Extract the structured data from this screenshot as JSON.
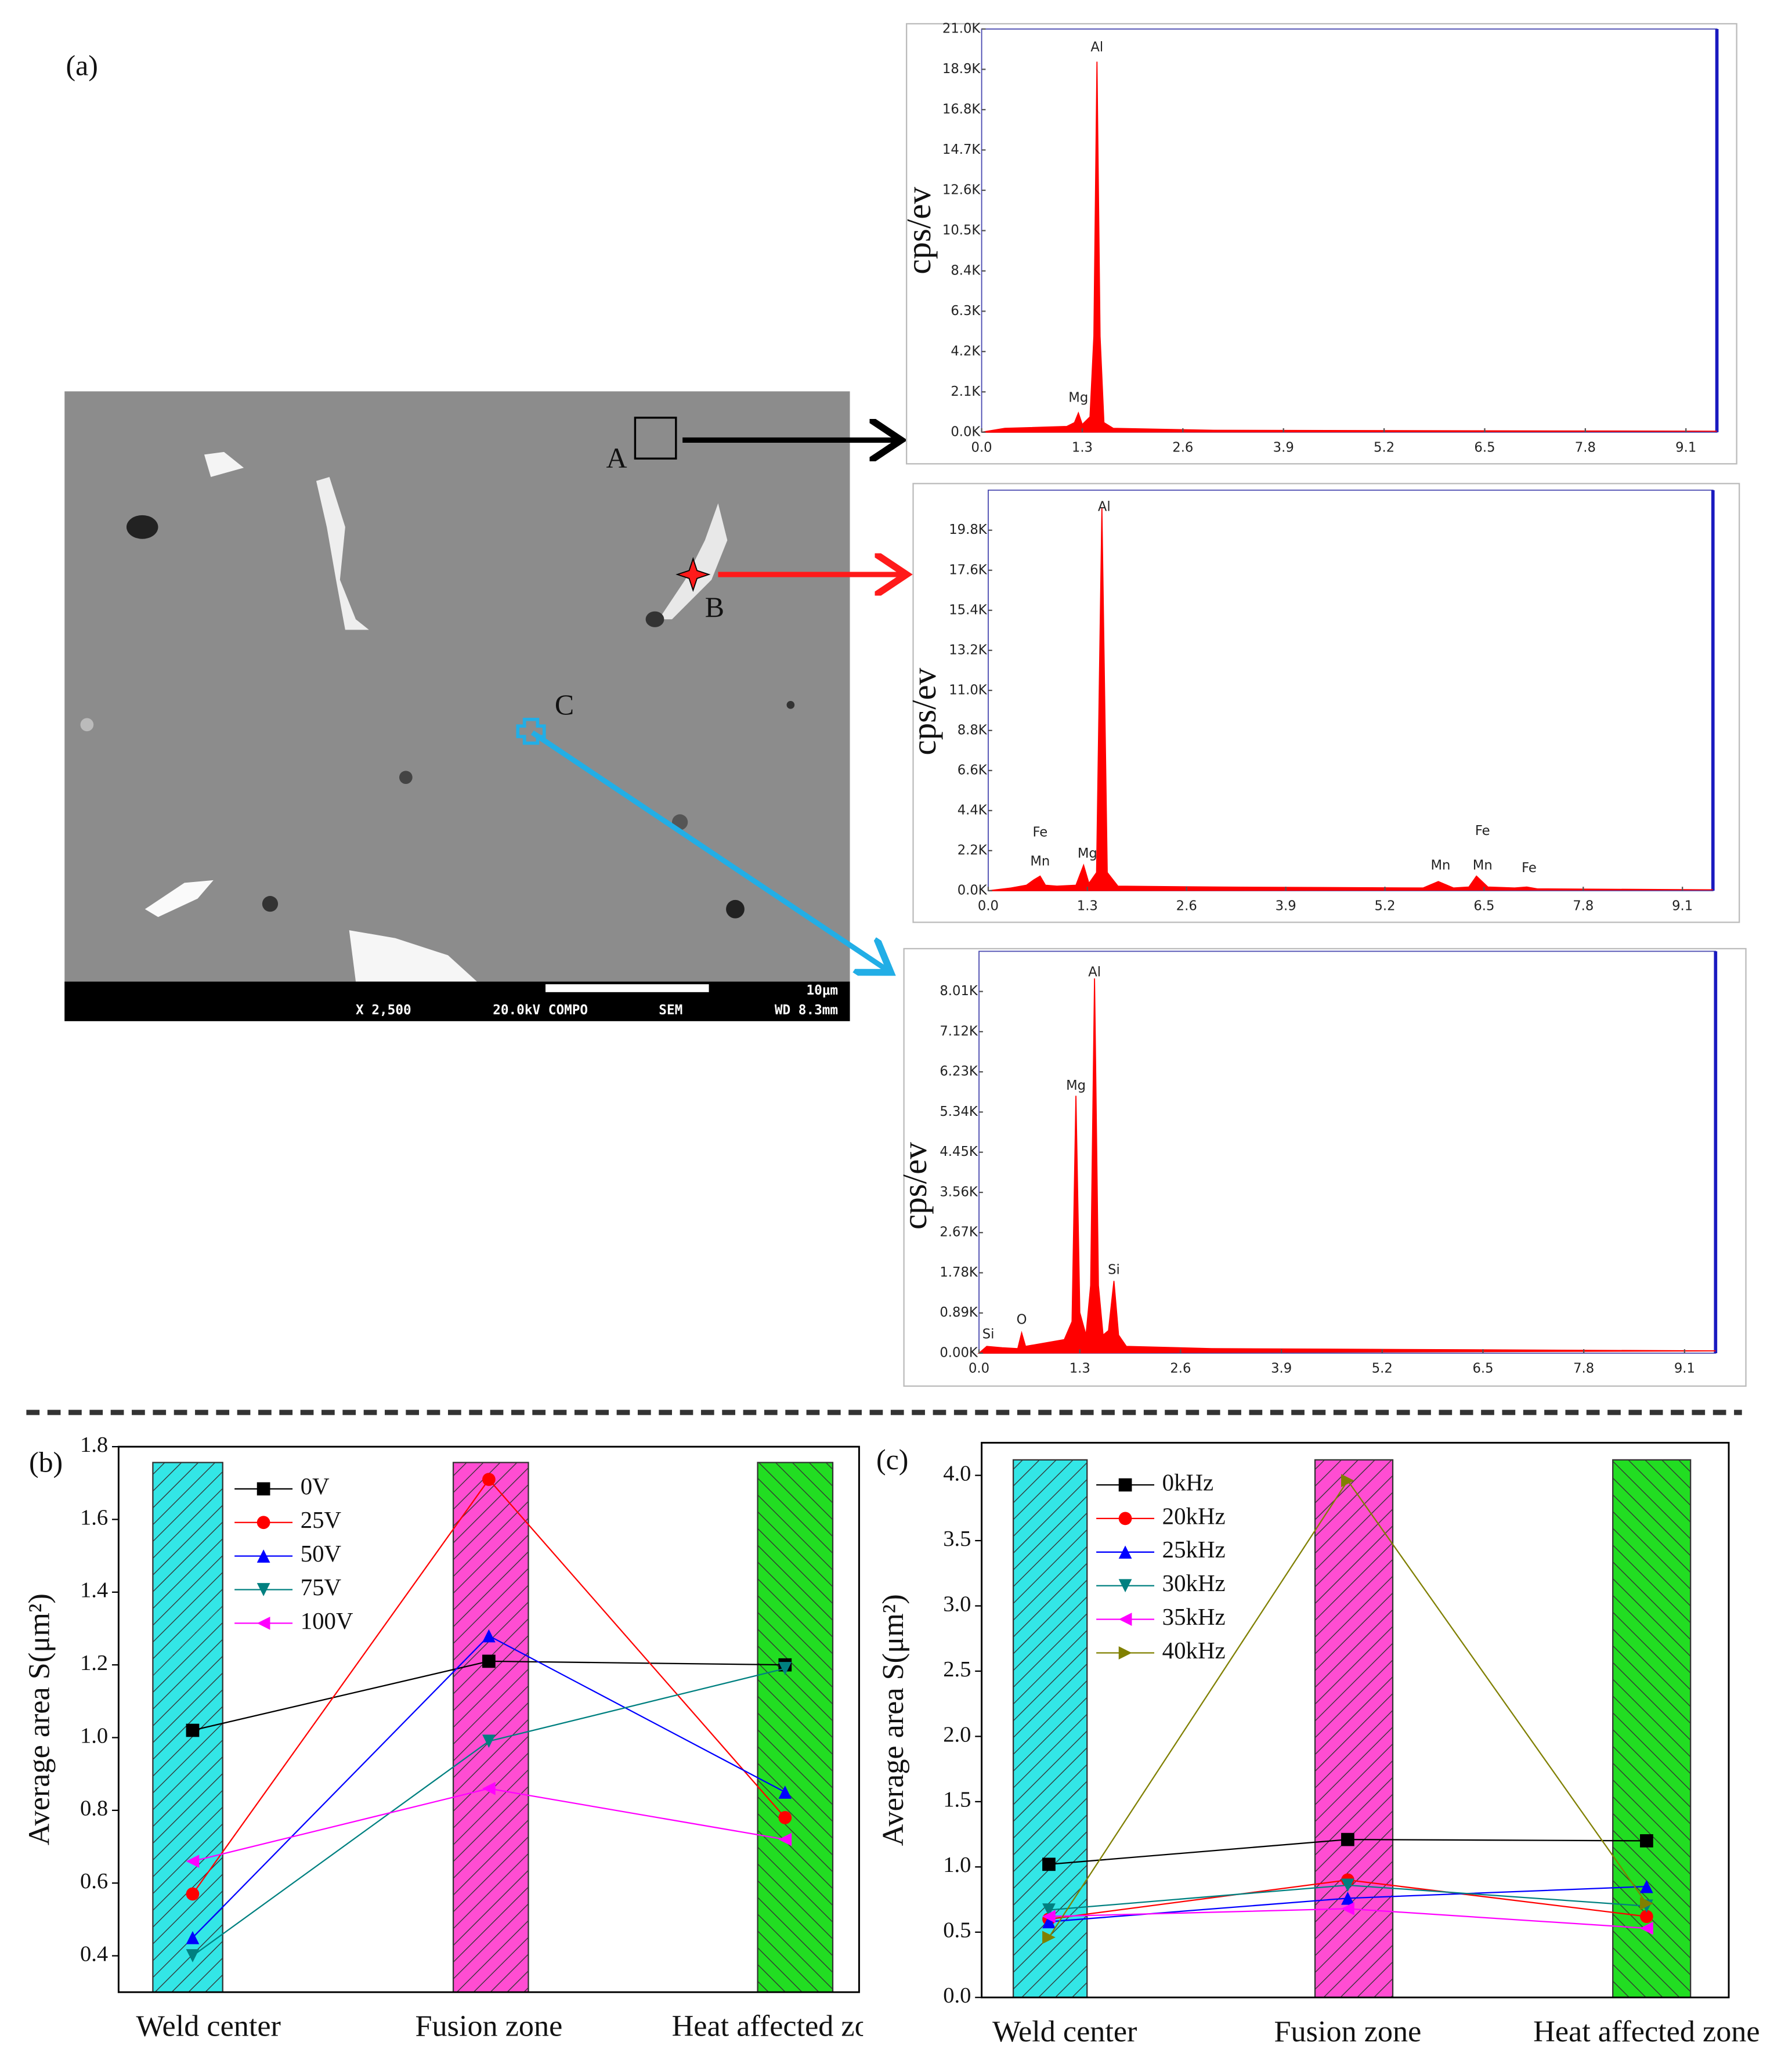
{
  "sem_image": {
    "panel_label": "(a)",
    "points": [
      "A",
      "B",
      "C"
    ],
    "scale": "10μm",
    "footer": [
      "X 2,500",
      "20.0kV COMPO",
      "SEM",
      "WD 8.3mm"
    ]
  },
  "chart_data": [
    {
      "type": "area",
      "y_label": "cps/ev",
      "color": "#ff0000",
      "x": [
        0,
        0.3,
        1.1,
        1.2,
        1.25,
        1.3,
        1.4,
        1.45,
        1.49,
        1.53,
        1.58,
        1.7,
        3,
        9.5
      ],
      "values": [
        0,
        200,
        300,
        500,
        1000,
        400,
        800,
        5000,
        19300,
        5000,
        500,
        200,
        100,
        50
      ],
      "xlim": [
        0,
        9.5
      ],
      "ylim": [
        0,
        21000
      ],
      "xticks": [
        {
          "value": 0,
          "label": "0.0"
        },
        1.3,
        2.6,
        3.9,
        5.2,
        6.5,
        7.8,
        9.1
      ],
      "yticks": [
        {
          "value": 0,
          "label": "0.0K"
        },
        {
          "value": 2100,
          "label": "2.1K"
        },
        {
          "value": 4200,
          "label": "4.2K"
        },
        {
          "value": 6300,
          "label": "6.3K"
        },
        {
          "value": 8400,
          "label": "8.4K"
        },
        {
          "value": 10500,
          "label": "10.5K"
        },
        {
          "value": 12600,
          "label": "12.6K"
        },
        {
          "value": 14700,
          "label": "14.7K"
        },
        {
          "value": 16800,
          "label": "16.8K"
        },
        {
          "value": 18900,
          "label": "18.9K"
        },
        {
          "value": 21000,
          "label": "21.0K"
        }
      ],
      "annotations": [
        {
          "text": "Al",
          "x": 1.49,
          "y": 20040
        },
        {
          "text": "Mg",
          "x": 1.25,
          "y": 1780
        }
      ]
    },
    {
      "type": "area",
      "y_label": "cps/ev",
      "color": "#ff0000",
      "x": [
        0,
        0.3,
        0.5,
        0.6,
        0.68,
        0.75,
        0.9,
        1.15,
        1.25,
        1.32,
        1.42,
        1.49,
        1.56,
        1.7,
        3,
        5.7,
        5.9,
        6.1,
        6.3,
        6.4,
        6.55,
        6.9,
        7.06,
        7.2,
        9.5
      ],
      "values": [
        0,
        150,
        300,
        600,
        800,
        300,
        250,
        300,
        1400,
        400,
        1000,
        21000,
        1000,
        250,
        200,
        150,
        500,
        150,
        200,
        800,
        200,
        150,
        200,
        100,
        50
      ],
      "xlim": [
        0,
        9.5
      ],
      "ylim": [
        0,
        22000
      ],
      "xticks": [
        {
          "value": 0,
          "label": "0.0"
        },
        1.3,
        2.6,
        3.9,
        5.2,
        6.5,
        7.8,
        9.1
      ],
      "yticks": [
        {
          "value": 0,
          "label": "0.0K"
        },
        {
          "value": 2200,
          "label": "2.2K"
        },
        {
          "value": 4400,
          "label": "4.4K"
        },
        {
          "value": 6600,
          "label": "6.6K"
        },
        {
          "value": 8800,
          "label": "8.8K"
        },
        {
          "value": 11000,
          "label": "11.0K"
        },
        {
          "value": 13200,
          "label": "13.2K"
        },
        {
          "value": 15400,
          "label": "15.4K"
        },
        {
          "value": 17600,
          "label": "17.6K"
        },
        {
          "value": 19800,
          "label": "19.8K"
        }
      ],
      "annotations": [
        {
          "text": "Al",
          "x": 1.52,
          "y": 21060
        },
        {
          "text": "Fe",
          "x": 0.68,
          "y": 3180
        },
        {
          "text": "Mn",
          "x": 0.68,
          "y": 1590
        },
        {
          "text": "Mg",
          "x": 1.3,
          "y": 2030
        },
        {
          "text": "Mn",
          "x": 5.93,
          "y": 1370
        },
        {
          "text": "Fe",
          "x": 6.48,
          "y": 3260
        },
        {
          "text": "Mn",
          "x": 6.48,
          "y": 1370
        },
        {
          "text": "Fe",
          "x": 7.09,
          "y": 1230
        }
      ]
    },
    {
      "type": "area",
      "y_label": "cps/ev",
      "color": "#ff0000",
      "x": [
        0,
        0.1,
        0.3,
        0.5,
        0.55,
        0.6,
        1.1,
        1.2,
        1.25,
        1.3,
        1.38,
        1.44,
        1.49,
        1.54,
        1.6,
        1.67,
        1.74,
        1.8,
        1.9,
        3,
        9.5
      ],
      "values": [
        0,
        150,
        120,
        100,
        450,
        150,
        300,
        700,
        5700,
        900,
        400,
        1500,
        8300,
        1500,
        400,
        500,
        1600,
        400,
        150,
        100,
        50
      ],
      "xlim": [
        0,
        9.5
      ],
      "ylim": [
        0,
        8900
      ],
      "xticks": [
        {
          "value": 0,
          "label": "0.0"
        },
        1.3,
        2.6,
        3.9,
        5.2,
        6.5,
        7.8,
        9.1
      ],
      "yticks": [
        {
          "value": 0,
          "label": "0.00K"
        },
        {
          "value": 890,
          "label": "0.89K"
        },
        {
          "value": 1780,
          "label": "1.78K"
        },
        {
          "value": 2670,
          "label": "2.67K"
        },
        {
          "value": 3560,
          "label": "3.56K"
        },
        {
          "value": 4450,
          "label": "4.45K"
        },
        {
          "value": 5340,
          "label": "5.34K"
        },
        {
          "value": 6230,
          "label": "6.23K"
        },
        {
          "value": 7120,
          "label": "7.12K"
        },
        {
          "value": 8010,
          "label": "8.01K"
        }
      ],
      "annotations": [
        {
          "text": "Al",
          "x": 1.49,
          "y": 8430
        },
        {
          "text": "Mg",
          "x": 1.25,
          "y": 5920
        },
        {
          "text": "Si",
          "x": 1.74,
          "y": 1840
        },
        {
          "text": "O",
          "x": 0.55,
          "y": 730
        },
        {
          "text": "Si",
          "x": 0.12,
          "y": 410
        }
      ]
    },
    {
      "type": "line",
      "panel_label": "(b)",
      "y_label": "Average area S(μm²)",
      "categories": [
        "Weld center",
        "Fusion zone",
        "Heat affected zone"
      ],
      "ylim": [
        0.3,
        1.8
      ],
      "yticks": [
        0.4,
        0.6,
        0.8,
        {
          "value": 1,
          "label": "1.0"
        },
        1.2,
        1.4,
        1.6,
        1.8
      ],
      "series": [
        {
          "name": "0V",
          "color": "#000000",
          "marker": "square",
          "values": [
            1.02,
            1.21,
            1.2
          ]
        },
        {
          "name": "25V",
          "color": "#ff0000",
          "marker": "circle",
          "values": [
            0.57,
            1.71,
            0.78
          ]
        },
        {
          "name": "50V",
          "color": "#0000ff",
          "marker": "triangle-up",
          "values": [
            0.45,
            1.28,
            0.85
          ]
        },
        {
          "name": "75V",
          "color": "#008080",
          "marker": "triangle-down",
          "values": [
            0.4,
            0.99,
            1.19
          ]
        },
        {
          "name": "100V",
          "color": "#ff00ff",
          "marker": "triangle-left",
          "values": [
            0.66,
            0.86,
            0.72
          ]
        }
      ]
    },
    {
      "type": "line",
      "panel_label": "(c)",
      "y_label": "Average area S(μm²)",
      "categories": [
        "Weld center",
        "Fusion zone",
        "Heat affected zone"
      ],
      "ylim": [
        0,
        4.25
      ],
      "yticks": [
        {
          "value": 0,
          "label": "0.0"
        },
        0.5,
        {
          "value": 1,
          "label": "1.0"
        },
        1.5,
        {
          "value": 2,
          "label": "2.0"
        },
        2.5,
        {
          "value": 3,
          "label": "3.0"
        },
        3.5,
        {
          "value": 4,
          "label": "4.0"
        }
      ],
      "series": [
        {
          "name": "0kHz",
          "color": "#000000",
          "marker": "square",
          "values": [
            1.02,
            1.21,
            1.2
          ]
        },
        {
          "name": "20kHz",
          "color": "#ff0000",
          "marker": "circle",
          "values": [
            0.6,
            0.9,
            0.62
          ]
        },
        {
          "name": "25kHz",
          "color": "#0000ff",
          "marker": "triangle-up",
          "values": [
            0.58,
            0.76,
            0.85
          ]
        },
        {
          "name": "30kHz",
          "color": "#008080",
          "marker": "triangle-down",
          "values": [
            0.67,
            0.86,
            0.7
          ]
        },
        {
          "name": "35kHz",
          "color": "#ff00ff",
          "marker": "triangle-left",
          "values": [
            0.62,
            0.68,
            0.53
          ]
        },
        {
          "name": "40kHz",
          "color": "#808000",
          "marker": "triangle-right",
          "values": [
            0.46,
            3.96,
            0.72
          ]
        }
      ]
    }
  ]
}
